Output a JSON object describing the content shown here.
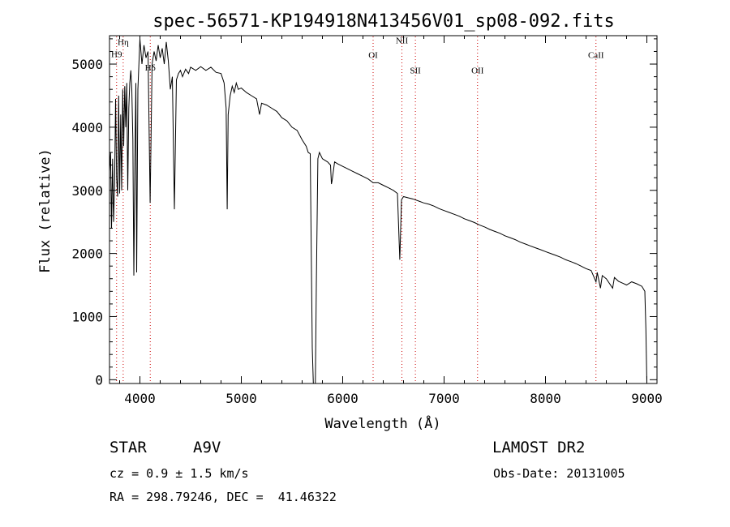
{
  "chart_data": {
    "type": "line",
    "title": "spec-56571-KP194918N413456V01_sp08-092.fits",
    "xlabel": "Wavelength (Å)",
    "ylabel": "Flux (relative)",
    "xlim": [
      3700,
      9100
    ],
    "ylim": [
      -60,
      5450
    ],
    "xticks": [
      4000,
      5000,
      6000,
      7000,
      8000,
      9000
    ],
    "yticks": [
      0,
      1000,
      2000,
      3000,
      4000,
      5000
    ],
    "grid": false,
    "line_color": "#000000",
    "marker_color": "#cc0000",
    "series": [
      {
        "points": [
          [
            3700,
            3300
          ],
          [
            3710,
            3600
          ],
          [
            3720,
            2400
          ],
          [
            3730,
            3500
          ],
          [
            3740,
            2500
          ],
          [
            3750,
            3100
          ],
          [
            3760,
            4450
          ],
          [
            3770,
            3200
          ],
          [
            3780,
            2900
          ],
          [
            3790,
            4500
          ],
          [
            3800,
            2950
          ],
          [
            3810,
            4200
          ],
          [
            3820,
            3000
          ],
          [
            3830,
            4600
          ],
          [
            3840,
            3700
          ],
          [
            3850,
            4650
          ],
          [
            3860,
            4000
          ],
          [
            3870,
            4700
          ],
          [
            3880,
            3000
          ],
          [
            3890,
            4300
          ],
          [
            3900,
            4700
          ],
          [
            3910,
            4900
          ],
          [
            3920,
            4600
          ],
          [
            3930,
            3800
          ],
          [
            3940,
            1650
          ],
          [
            3950,
            3500
          ],
          [
            3960,
            4700
          ],
          [
            3968,
            1700
          ],
          [
            3980,
            4600
          ],
          [
            4000,
            5400
          ],
          [
            4020,
            5000
          ],
          [
            4040,
            5300
          ],
          [
            4060,
            5100
          ],
          [
            4080,
            5200
          ],
          [
            4101,
            2800
          ],
          [
            4120,
            5000
          ],
          [
            4140,
            5200
          ],
          [
            4160,
            5050
          ],
          [
            4180,
            5300
          ],
          [
            4200,
            5100
          ],
          [
            4220,
            5250
          ],
          [
            4240,
            5000
          ],
          [
            4260,
            5350
          ],
          [
            4280,
            5050
          ],
          [
            4300,
            4600
          ],
          [
            4320,
            4800
          ],
          [
            4340,
            2700
          ],
          [
            4360,
            4750
          ],
          [
            4380,
            4850
          ],
          [
            4400,
            4900
          ],
          [
            4420,
            4800
          ],
          [
            4450,
            4920
          ],
          [
            4480,
            4850
          ],
          [
            4500,
            4950
          ],
          [
            4550,
            4900
          ],
          [
            4600,
            4960
          ],
          [
            4650,
            4900
          ],
          [
            4700,
            4950
          ],
          [
            4750,
            4870
          ],
          [
            4800,
            4850
          ],
          [
            4830,
            4700
          ],
          [
            4850,
            4300
          ],
          [
            4861,
            2700
          ],
          [
            4870,
            4200
          ],
          [
            4890,
            4500
          ],
          [
            4910,
            4650
          ],
          [
            4930,
            4550
          ],
          [
            4950,
            4700
          ],
          [
            4970,
            4600
          ],
          [
            5000,
            4620
          ],
          [
            5050,
            4550
          ],
          [
            5100,
            4500
          ],
          [
            5150,
            4450
          ],
          [
            5180,
            4200
          ],
          [
            5200,
            4380
          ],
          [
            5250,
            4350
          ],
          [
            5300,
            4300
          ],
          [
            5350,
            4250
          ],
          [
            5400,
            4150
          ],
          [
            5450,
            4100
          ],
          [
            5500,
            4000
          ],
          [
            5550,
            3950
          ],
          [
            5600,
            3800
          ],
          [
            5640,
            3700
          ],
          [
            5660,
            3600
          ],
          [
            5680,
            3580
          ],
          [
            5700,
            500
          ],
          [
            5710,
            -60
          ],
          [
            5730,
            -60
          ],
          [
            5740,
            1500
          ],
          [
            5755,
            3500
          ],
          [
            5770,
            3600
          ],
          [
            5800,
            3500
          ],
          [
            5850,
            3450
          ],
          [
            5880,
            3400
          ],
          [
            5889,
            3100
          ],
          [
            5895,
            3150
          ],
          [
            5920,
            3450
          ],
          [
            5950,
            3420
          ],
          [
            6000,
            3380
          ],
          [
            6050,
            3340
          ],
          [
            6100,
            3300
          ],
          [
            6150,
            3260
          ],
          [
            6200,
            3220
          ],
          [
            6250,
            3180
          ],
          [
            6300,
            3120
          ],
          [
            6350,
            3120
          ],
          [
            6400,
            3080
          ],
          [
            6450,
            3040
          ],
          [
            6500,
            3000
          ],
          [
            6540,
            2950
          ],
          [
            6563,
            1900
          ],
          [
            6580,
            2850
          ],
          [
            6600,
            2900
          ],
          [
            6650,
            2880
          ],
          [
            6700,
            2860
          ],
          [
            6750,
            2830
          ],
          [
            6800,
            2800
          ],
          [
            6850,
            2780
          ],
          [
            6900,
            2750
          ],
          [
            6950,
            2710
          ],
          [
            7000,
            2680
          ],
          [
            7050,
            2650
          ],
          [
            7100,
            2620
          ],
          [
            7150,
            2590
          ],
          [
            7200,
            2550
          ],
          [
            7250,
            2520
          ],
          [
            7300,
            2490
          ],
          [
            7350,
            2450
          ],
          [
            7400,
            2420
          ],
          [
            7450,
            2380
          ],
          [
            7500,
            2350
          ],
          [
            7550,
            2320
          ],
          [
            7600,
            2280
          ],
          [
            7650,
            2250
          ],
          [
            7700,
            2220
          ],
          [
            7750,
            2180
          ],
          [
            7800,
            2150
          ],
          [
            7850,
            2120
          ],
          [
            7900,
            2090
          ],
          [
            7950,
            2060
          ],
          [
            8000,
            2030
          ],
          [
            8050,
            2000
          ],
          [
            8100,
            1970
          ],
          [
            8150,
            1940
          ],
          [
            8200,
            1900
          ],
          [
            8250,
            1870
          ],
          [
            8300,
            1840
          ],
          [
            8350,
            1800
          ],
          [
            8400,
            1760
          ],
          [
            8450,
            1730
          ],
          [
            8498,
            1550
          ],
          [
            8510,
            1700
          ],
          [
            8542,
            1450
          ],
          [
            8560,
            1650
          ],
          [
            8600,
            1600
          ],
          [
            8662,
            1450
          ],
          [
            8680,
            1620
          ],
          [
            8720,
            1560
          ],
          [
            8760,
            1530
          ],
          [
            8800,
            1500
          ],
          [
            8850,
            1550
          ],
          [
            8900,
            1520
          ],
          [
            8950,
            1480
          ],
          [
            8980,
            1400
          ],
          [
            8990,
            800
          ],
          [
            9000,
            -60
          ]
        ]
      }
    ],
    "line_markers": [
      {
        "label": "Hη",
        "x": 3835,
        "label_y": 5300
      },
      {
        "label": "H9",
        "x": 3770,
        "label_y": 5110
      },
      {
        "label": "Hδ",
        "x": 4102,
        "label_y": 4900
      },
      {
        "label": "OI",
        "x": 6300,
        "label_y": 5100
      },
      {
        "label": "NII",
        "x": 6584,
        "label_y": 5330
      },
      {
        "label": "SII",
        "x": 6717,
        "label_y": 4850
      },
      {
        "label": "OII",
        "x": 7330,
        "label_y": 4850
      },
      {
        "label": "CaII",
        "x": 8498,
        "label_y": 5100
      }
    ]
  },
  "info": {
    "object_type": "STAR",
    "subclass": "A9V",
    "survey": "LAMOST DR2",
    "cz": "cz = 0.9 ± 1.5 km/s",
    "obs_date": "Obs-Date: 20131005",
    "coords": "RA = 298.79246, DEC =  41.46322"
  }
}
